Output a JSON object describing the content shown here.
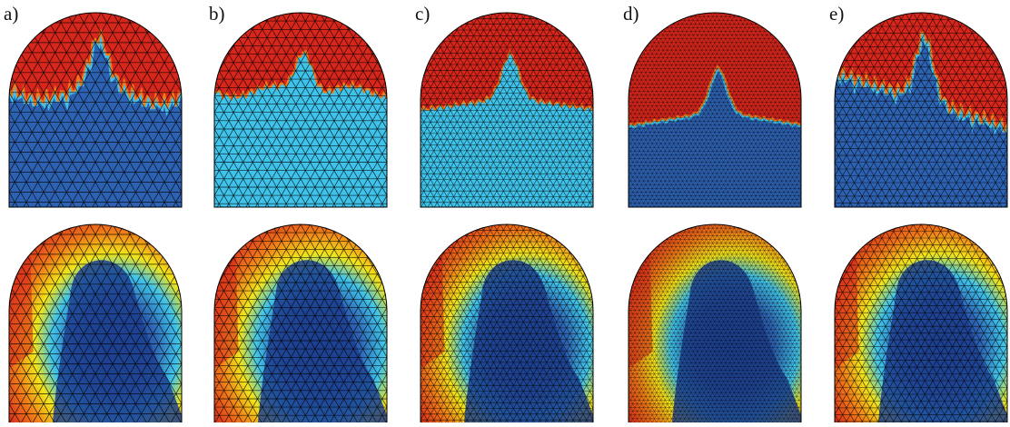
{
  "figure": {
    "labels": [
      "a)",
      "b)",
      "c)",
      "d)",
      "e)"
    ],
    "colors": {
      "red": "#d7261c",
      "orange": "#f07a18",
      "yellow": "#f2e418",
      "cyan": "#3fc3ea",
      "blue": "#2d62b2",
      "navy": "#1d3f8f",
      "mesh": "#000000"
    },
    "top_row_lower_fill": [
      "#2d62b2",
      "#3fc3ea",
      "#3fc3ea",
      "#2d62b2",
      "#2d62b2"
    ],
    "mesh_density": [
      15,
      18,
      26,
      40,
      22
    ]
  }
}
